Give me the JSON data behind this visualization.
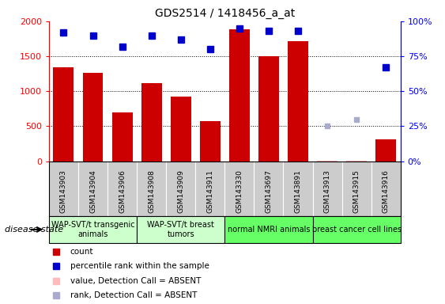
{
  "title": "GDS2514 / 1418456_a_at",
  "samples": [
    "GSM143903",
    "GSM143904",
    "GSM143906",
    "GSM143908",
    "GSM143909",
    "GSM143911",
    "GSM143330",
    "GSM143697",
    "GSM143891",
    "GSM143913",
    "GSM143915",
    "GSM143916"
  ],
  "counts": [
    1340,
    1260,
    700,
    1120,
    920,
    575,
    1890,
    1500,
    1710,
    5,
    8,
    310
  ],
  "percentile_ranks": [
    92,
    90,
    82,
    90,
    87,
    80,
    95,
    93,
    93,
    null,
    null,
    67
  ],
  "absent_counts": [
    null,
    null,
    null,
    null,
    null,
    null,
    null,
    null,
    null,
    5,
    8,
    null
  ],
  "absent_ranks": [
    null,
    null,
    null,
    null,
    null,
    null,
    null,
    null,
    null,
    25,
    30,
    null
  ],
  "groups": [
    {
      "label": "WAP-SVT/t transgenic\nanimals",
      "color": "#ccffcc",
      "indices": [
        0,
        1,
        2
      ]
    },
    {
      "label": "WAP-SVT/t breast\ntumors",
      "color": "#ccffcc",
      "indices": [
        3,
        4,
        5
      ]
    },
    {
      "label": "normal NMRI animals",
      "color": "#66ff66",
      "indices": [
        6,
        7,
        8
      ]
    },
    {
      "label": "breast cancer cell lines",
      "color": "#66ff66",
      "indices": [
        9,
        10,
        11
      ]
    }
  ],
  "ylim_left": [
    0,
    2000
  ],
  "ylim_right": [
    0,
    100
  ],
  "yticks_left": [
    0,
    500,
    1000,
    1500,
    2000
  ],
  "yticks_right": [
    0,
    25,
    50,
    75,
    100
  ],
  "bar_color": "#cc0000",
  "dot_color": "#0000cc",
  "absent_bar_color": "#ffaaaa",
  "absent_dot_color": "#aaaacc",
  "legend_items": [
    {
      "label": "count",
      "color": "#cc0000"
    },
    {
      "label": "percentile rank within the sample",
      "color": "#0000cc"
    },
    {
      "label": "value, Detection Call = ABSENT",
      "color": "#ffbbbb"
    },
    {
      "label": "rank, Detection Call = ABSENT",
      "color": "#aaaacc"
    }
  ],
  "disease_state_label": "disease state",
  "group_border_color": "#888888",
  "tick_bg_color": "#cccccc"
}
